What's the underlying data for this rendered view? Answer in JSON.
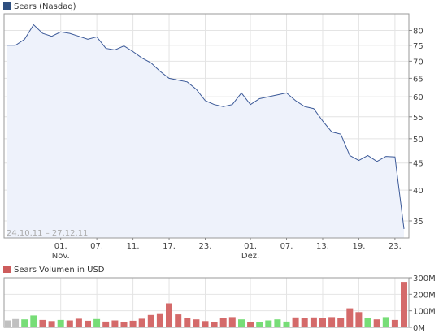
{
  "chart_data": [
    {
      "type": "area",
      "legend": "Sears (Nasdaq)",
      "legend_color": "#2e4f80",
      "line_color": "#3b5998",
      "fill_color": "#eef2fb",
      "date_range": "24.10.11 – 27.12.11",
      "y_scale": "log",
      "ylim": [
        32.5,
        86
      ],
      "y_ticks": [
        35,
        40,
        45,
        50,
        55,
        60,
        65,
        70,
        75,
        80
      ],
      "x_ticks": [
        {
          "label": "01.",
          "sub": "Nov.",
          "date": "2011-11-01"
        },
        {
          "label": "07.",
          "sub": "",
          "date": "2011-11-07"
        },
        {
          "label": "11.",
          "sub": "",
          "date": "2011-11-11"
        },
        {
          "label": "17.",
          "sub": "",
          "date": "2011-11-17"
        },
        {
          "label": "23.",
          "sub": "",
          "date": "2011-11-23"
        },
        {
          "label": "01.",
          "sub": "Dez.",
          "date": "2011-12-01"
        },
        {
          "label": "07.",
          "sub": "",
          "date": "2011-12-07"
        },
        {
          "label": "13.",
          "sub": "",
          "date": "2011-12-13"
        },
        {
          "label": "19.",
          "sub": "",
          "date": "2011-12-19"
        },
        {
          "label": "23.",
          "sub": "",
          "date": "2011-12-23"
        }
      ],
      "grid": true,
      "x": [
        "2011-10-24",
        "2011-10-25",
        "2011-10-26",
        "2011-10-27",
        "2011-10-28",
        "2011-10-31",
        "2011-11-01",
        "2011-11-02",
        "2011-11-03",
        "2011-11-04",
        "2011-11-07",
        "2011-11-08",
        "2011-11-09",
        "2011-11-10",
        "2011-11-11",
        "2011-11-14",
        "2011-11-15",
        "2011-11-16",
        "2011-11-17",
        "2011-11-18",
        "2011-11-21",
        "2011-11-22",
        "2011-11-23",
        "2011-11-25",
        "2011-11-28",
        "2011-11-29",
        "2011-11-30",
        "2011-12-01",
        "2011-12-02",
        "2011-12-05",
        "2011-12-06",
        "2011-12-07",
        "2011-12-08",
        "2011-12-09",
        "2011-12-12",
        "2011-12-13",
        "2011-12-14",
        "2011-12-15",
        "2011-12-16",
        "2011-12-19",
        "2011-12-20",
        "2011-12-21",
        "2011-12-22",
        "2011-12-23",
        "2011-12-27"
      ],
      "y": [
        75.0,
        75.0,
        77.0,
        82.0,
        79.0,
        78.0,
        79.5,
        79.0,
        78.0,
        77.0,
        77.8,
        74.0,
        73.5,
        74.8,
        73.0,
        71.0,
        69.5,
        67.0,
        65.0,
        64.5,
        64.0,
        62.0,
        59.0,
        58.0,
        57.5,
        58.0,
        61.0,
        58.0,
        59.5,
        60.0,
        60.5,
        61.0,
        59.0,
        57.5,
        57.0,
        54.0,
        51.5,
        51.0,
        46.5,
        45.5,
        46.5,
        45.3,
        46.3,
        46.2,
        33.8
      ]
    },
    {
      "type": "bar",
      "legend": "Sears Volumen in USD",
      "legend_color": "#cd5c5c",
      "ylim": [
        0,
        300
      ],
      "y_ticks": [
        {
          "value": 0,
          "label": "0M"
        },
        {
          "value": 100,
          "label": "100M"
        },
        {
          "value": 200,
          "label": "200M"
        },
        {
          "value": 300,
          "label": "300M"
        }
      ],
      "up_color": "#77dd77",
      "down_color": "#d46a6a",
      "neutral_color": "#c0c0c0",
      "values": [
        42,
        50,
        48,
        72,
        45,
        38,
        45,
        42,
        52,
        40,
        50,
        35,
        42,
        32,
        40,
        52,
        75,
        85,
        145,
        78,
        55,
        48,
        38,
        30,
        55,
        62,
        48,
        32,
        32,
        42,
        48,
        35,
        60,
        58,
        60,
        55,
        62,
        58,
        115,
        92,
        55,
        48,
        62,
        45,
        275
      ],
      "directions": [
        "neutral",
        "neutral",
        "up",
        "up",
        "down",
        "down",
        "up",
        "down",
        "down",
        "down",
        "up",
        "down",
        "down",
        "down",
        "down",
        "down",
        "down",
        "down",
        "down",
        "down",
        "down",
        "down",
        "down",
        "down",
        "down",
        "down",
        "up",
        "down",
        "up",
        "up",
        "up",
        "up",
        "down",
        "down",
        "down",
        "down",
        "down",
        "down",
        "down",
        "down",
        "up",
        "down",
        "up",
        "down",
        "down"
      ]
    }
  ]
}
